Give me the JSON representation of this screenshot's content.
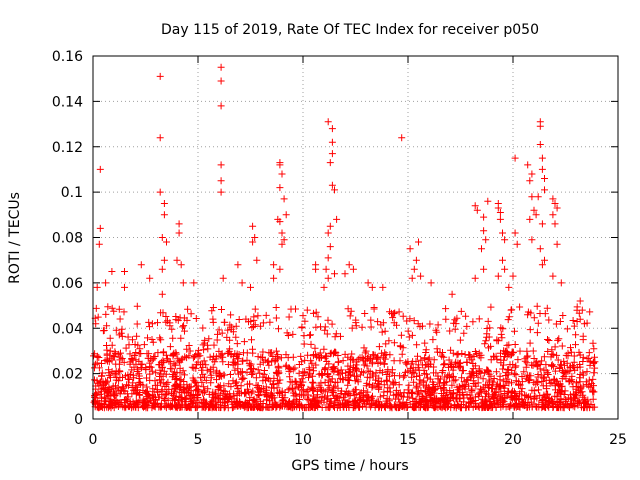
{
  "chart_data": {
    "type": "scatter",
    "title": "Day 115 of 2019, Rate Of TEC Index for receiver p050",
    "xlabel": "GPS time / hours",
    "ylabel": "ROTI / TECUs",
    "xlim": [
      0,
      25
    ],
    "ylim": [
      0,
      0.16
    ],
    "xticks": [
      0,
      5,
      10,
      15,
      20,
      25
    ],
    "xtick_labels": [
      "0",
      "5",
      "10",
      "15",
      "20",
      "25"
    ],
    "yticks": [
      0,
      0.02,
      0.04,
      0.06,
      0.08,
      0.1,
      0.12,
      0.14,
      0.16
    ],
    "ytick_labels": [
      "0",
      "0.02",
      "0.04",
      "0.06",
      "0.08",
      "0.1",
      "0.12",
      "0.14",
      "0.16"
    ],
    "grid": true,
    "marker": "+",
    "series": [
      {
        "name": "ROTI",
        "color": "#ff0000",
        "baseline_band": [
          0.005,
          0.03
        ],
        "points": [
          [
            0.35,
            0.11
          ],
          [
            0.35,
            0.084
          ],
          [
            0.3,
            0.077
          ],
          [
            0.2,
            0.058
          ],
          [
            0.6,
            0.06
          ],
          [
            0.9,
            0.065
          ],
          [
            1.5,
            0.065
          ],
          [
            1.5,
            0.058
          ],
          [
            2.3,
            0.068
          ],
          [
            2.7,
            0.062
          ],
          [
            3.2,
            0.151
          ],
          [
            3.2,
            0.124
          ],
          [
            3.2,
            0.1
          ],
          [
            3.4,
            0.095
          ],
          [
            3.4,
            0.09
          ],
          [
            3.3,
            0.08
          ],
          [
            3.5,
            0.078
          ],
          [
            3.3,
            0.066
          ],
          [
            3.4,
            0.07
          ],
          [
            3.3,
            0.055
          ],
          [
            4.1,
            0.086
          ],
          [
            4.1,
            0.082
          ],
          [
            4.0,
            0.07
          ],
          [
            4.2,
            0.068
          ],
          [
            4.3,
            0.06
          ],
          [
            4.8,
            0.06
          ],
          [
            6.1,
            0.155
          ],
          [
            6.1,
            0.149
          ],
          [
            6.1,
            0.138
          ],
          [
            6.1,
            0.112
          ],
          [
            6.1,
            0.105
          ],
          [
            6.1,
            0.1
          ],
          [
            6.2,
            0.062
          ],
          [
            6.9,
            0.068
          ],
          [
            7.1,
            0.06
          ],
          [
            7.6,
            0.085
          ],
          [
            7.7,
            0.08
          ],
          [
            7.6,
            0.078
          ],
          [
            7.8,
            0.07
          ],
          [
            7.5,
            0.058
          ],
          [
            8.6,
            0.068
          ],
          [
            8.6,
            0.062
          ],
          [
            8.9,
            0.113
          ],
          [
            8.9,
            0.112
          ],
          [
            9.0,
            0.108
          ],
          [
            8.9,
            0.102
          ],
          [
            9.1,
            0.097
          ],
          [
            9.2,
            0.09
          ],
          [
            8.8,
            0.088
          ],
          [
            8.9,
            0.087
          ],
          [
            9.0,
            0.082
          ],
          [
            9.1,
            0.079
          ],
          [
            9.0,
            0.077
          ],
          [
            8.9,
            0.066
          ],
          [
            10.6,
            0.068
          ],
          [
            10.6,
            0.066
          ],
          [
            11.2,
            0.131
          ],
          [
            11.4,
            0.128
          ],
          [
            11.4,
            0.122
          ],
          [
            11.4,
            0.117
          ],
          [
            11.3,
            0.113
          ],
          [
            11.4,
            0.103
          ],
          [
            11.5,
            0.101
          ],
          [
            11.6,
            0.088
          ],
          [
            11.3,
            0.085
          ],
          [
            11.2,
            0.082
          ],
          [
            11.3,
            0.076
          ],
          [
            11.2,
            0.071
          ],
          [
            11.1,
            0.066
          ],
          [
            11.5,
            0.064
          ],
          [
            11.2,
            0.062
          ],
          [
            11.0,
            0.058
          ],
          [
            12.2,
            0.068
          ],
          [
            12.4,
            0.066
          ],
          [
            12.0,
            0.064
          ],
          [
            13.1,
            0.06
          ],
          [
            13.3,
            0.058
          ],
          [
            13.8,
            0.058
          ],
          [
            14.7,
            0.124
          ],
          [
            15.1,
            0.075
          ],
          [
            15.5,
            0.078
          ],
          [
            15.4,
            0.07
          ],
          [
            15.3,
            0.066
          ],
          [
            15.6,
            0.063
          ],
          [
            15.2,
            0.062
          ],
          [
            16.1,
            0.06
          ],
          [
            17.1,
            0.055
          ],
          [
            18.2,
            0.094
          ],
          [
            18.3,
            0.092
          ],
          [
            18.6,
            0.089
          ],
          [
            18.6,
            0.083
          ],
          [
            18.8,
            0.096
          ],
          [
            18.7,
            0.079
          ],
          [
            18.5,
            0.075
          ],
          [
            18.6,
            0.066
          ],
          [
            18.2,
            0.062
          ],
          [
            19.3,
            0.095
          ],
          [
            19.3,
            0.093
          ],
          [
            19.4,
            0.091
          ],
          [
            19.4,
            0.088
          ],
          [
            19.5,
            0.082
          ],
          [
            19.6,
            0.079
          ],
          [
            19.5,
            0.07
          ],
          [
            19.6,
            0.066
          ],
          [
            19.3,
            0.063
          ],
          [
            19.8,
            0.058
          ],
          [
            20.1,
            0.115
          ],
          [
            20.1,
            0.082
          ],
          [
            20.2,
            0.077
          ],
          [
            20.0,
            0.063
          ],
          [
            20.7,
            0.112
          ],
          [
            20.9,
            0.108
          ],
          [
            20.8,
            0.105
          ],
          [
            20.9,
            0.098
          ],
          [
            21.0,
            0.092
          ],
          [
            21.1,
            0.09
          ],
          [
            20.8,
            0.088
          ],
          [
            20.9,
            0.079
          ],
          [
            21.3,
            0.131
          ],
          [
            21.3,
            0.129
          ],
          [
            21.3,
            0.121
          ],
          [
            21.4,
            0.115
          ],
          [
            21.4,
            0.11
          ],
          [
            21.5,
            0.106
          ],
          [
            21.5,
            0.101
          ],
          [
            21.2,
            0.098
          ],
          [
            21.4,
            0.086
          ],
          [
            21.3,
            0.075
          ],
          [
            21.5,
            0.07
          ],
          [
            21.4,
            0.068
          ],
          [
            21.9,
            0.097
          ],
          [
            22.0,
            0.095
          ],
          [
            22.1,
            0.093
          ],
          [
            21.9,
            0.09
          ],
          [
            22.0,
            0.086
          ],
          [
            22.1,
            0.077
          ],
          [
            21.9,
            0.063
          ],
          [
            22.3,
            0.06
          ],
          [
            23.2,
            0.052
          ],
          [
            23.3,
            0.048
          ],
          [
            23.2,
            0.044
          ],
          [
            23.4,
            0.042
          ]
        ]
      }
    ]
  }
}
